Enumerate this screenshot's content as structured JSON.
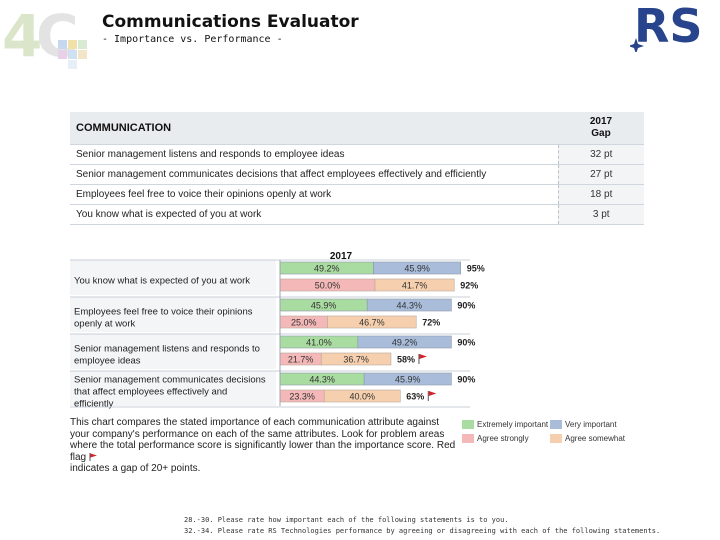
{
  "header": {
    "title": "Communications Evaluator",
    "subtitle": "- Importance vs. Performance -"
  },
  "table": {
    "header_left": "COMMUNICATION",
    "header_right_line1": "2017",
    "header_right_line2": "Gap",
    "rows": [
      {
        "label": "Senior management listens and responds to employee ideas",
        "gap": "32 pt"
      },
      {
        "label": "Senior management communicates decisions that affect employees effectively and efficiently",
        "gap": "27 pt"
      },
      {
        "label": "Employees feel free to voice their opinions openly at work",
        "gap": "18 pt"
      },
      {
        "label": "You know what is expected of you at work",
        "gap": "3 pt"
      }
    ]
  },
  "chart_data": {
    "type": "bar",
    "orientation": "horizontal-stacked",
    "title": "2017",
    "categories": [
      "You know what is expected of you at work",
      "Employees feel free to voice their opinions openly at work",
      "Senior management listens and responds to employee ideas",
      "Senior management communicates decisions that affect employees effectively and efficiently"
    ],
    "importance": {
      "series": [
        {
          "name": "Extremely important",
          "values": [
            49.2,
            45.9,
            41.0,
            44.3
          ]
        },
        {
          "name": "Very important",
          "values": [
            45.9,
            44.3,
            49.2,
            45.9
          ]
        }
      ],
      "totals": [
        "95%",
        "90%",
        "90%",
        "90%"
      ]
    },
    "performance": {
      "series": [
        {
          "name": "Agree strongly",
          "values": [
            50.0,
            25.0,
            21.7,
            23.3
          ]
        },
        {
          "name": "Agree somewhat",
          "values": [
            41.7,
            46.7,
            36.7,
            40.0
          ]
        }
      ],
      "totals": [
        "92%",
        "72%",
        "58%",
        "63%"
      ]
    },
    "red_flags": [
      false,
      false,
      true,
      true
    ],
    "xlim": [
      0,
      100
    ],
    "colors": {
      "extremely_important": "#a9dca0",
      "very_important": "#a9bddb",
      "agree_strongly": "#f4b8b8",
      "agree_somewhat": "#f6d0ae",
      "flag": "#d4232a"
    }
  },
  "explanation": {
    "text": "This chart compares the stated importance of each communication attribute against your company's performance on each of the same attributes. Look for problem areas where the total performance score is significantly lower than the importance score. Red flag",
    "text_after_flag": "indicates a gap of 20+ points."
  },
  "legend": {
    "items": [
      {
        "label": "Extremely important",
        "color": "#a9dca0"
      },
      {
        "label": "Very important",
        "color": "#a9bddb"
      },
      {
        "label": "Agree strongly",
        "color": "#f4b8b8"
      },
      {
        "label": "Agree somewhat",
        "color": "#f6d0ae"
      }
    ]
  },
  "footnotes": [
    "28.-30. Please rate how important each of the following statements is to you.",
    "32.-34. Please rate RS Technologies performance by agreeing or disagreeing with each of the following statements."
  ]
}
